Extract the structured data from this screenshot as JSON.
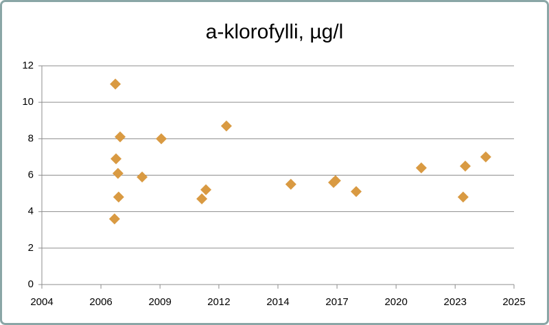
{
  "chart_data": {
    "type": "scatter",
    "title": "a-klorofylli, µg/l",
    "color": "#d99a42",
    "grid": true,
    "x": [
      2007.37,
      2007.41,
      2007.63,
      2007.44,
      2007.53,
      2007.56,
      2008.65,
      2009.54,
      2011.42,
      2011.61,
      2012.56,
      2015.55,
      2017.53,
      2017.62,
      2018.58,
      2021.6,
      2023.54,
      2023.64,
      2024.59
    ],
    "values": [
      3.6,
      11,
      8.1,
      6.9,
      6.1,
      4.8,
      5.9,
      8,
      4.7,
      5.2,
      8.7,
      5.5,
      5.6,
      5.7,
      5.1,
      6.4,
      4.8,
      6.5,
      7
    ],
    "xlim": [
      2004,
      2025.9
    ],
    "xticks": [
      2004,
      {
        "value": 2006.74,
        "label": "2006"
      },
      {
        "value": 2009.48,
        "label": "2009"
      },
      {
        "value": 2012.21,
        "label": "2012"
      },
      {
        "value": 2014.95,
        "label": "2014"
      },
      {
        "value": 2017.69,
        "label": "2017"
      },
      {
        "value": 2020.43,
        "label": "2020"
      },
      {
        "value": 2023.17,
        "label": "2023"
      },
      {
        "value": 2025.9,
        "label": "2025"
      }
    ],
    "ylim": [
      0,
      12
    ],
    "yticks": [
      0,
      2,
      4,
      6,
      8,
      10,
      12
    ]
  }
}
